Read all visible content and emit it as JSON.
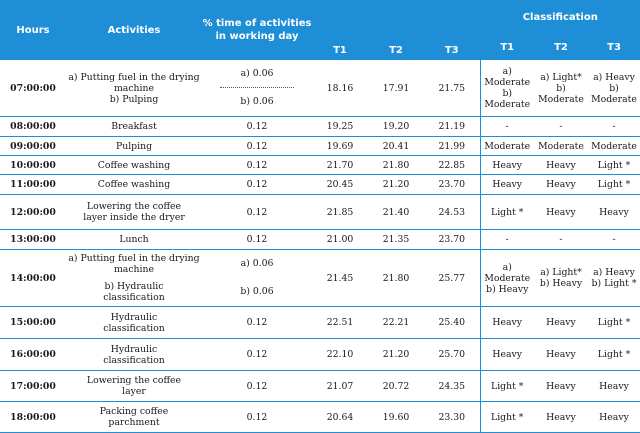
{
  "headers": {
    "hours": "Hours",
    "activities": "Activities",
    "pct": "% time of activities in working day",
    "t1": "T1",
    "t2": "T2",
    "t3": "T3",
    "classification": "Classification",
    "c1": "T1",
    "c2": "T2",
    "c3": "T3"
  },
  "rows": [
    {
      "hour": "07:00:00",
      "act_a": "a) Putting fuel in the drying machine",
      "act_b": "b) Pulping",
      "pct_a": "a) 0.06",
      "pct_b": "b) 0.06",
      "t1": "18.16",
      "t2": "17.91",
      "t3": "21.75",
      "c1_a": "a) Moderate",
      "c1_b": "b) Moderate",
      "c2_a": "a) Light*",
      "c2_b": "b) Moderate",
      "c3_a": "a) Heavy",
      "c3_b": "b) Moderate"
    },
    {
      "hour": "08:00:00",
      "act": "Breakfast",
      "pct": "0.12",
      "t1": "19.25",
      "t2": "19.20",
      "t3": "21.19",
      "c1": "-",
      "c2": "-",
      "c3": "-"
    },
    {
      "hour": "09:00:00",
      "act": "Pulping",
      "pct": "0.12",
      "t1": "19.69",
      "t2": "20.41",
      "t3": "21.99",
      "c1": "Moderate",
      "c2": "Moderate",
      "c3": "Moderate"
    },
    {
      "hour": "10:00:00",
      "act": "Coffee washing",
      "pct": "0.12",
      "t1": "21.70",
      "t2": "21.80",
      "t3": "22.85",
      "c1": "Heavy",
      "c2": "Heavy",
      "c3": "Light *"
    },
    {
      "hour": "11:00:00",
      "act": "Coffee washing",
      "pct": "0.12",
      "t1": "20.45",
      "t2": "21.20",
      "t3": "23.70",
      "c1": "Heavy",
      "c2": "Heavy",
      "c3": "Light *"
    },
    {
      "hour": "12:00:00",
      "act": "Lowering the coffee layer inside the dryer",
      "pct": "0.12",
      "t1": "21.85",
      "t2": "21.40",
      "t3": "24.53",
      "c1": "Light *",
      "c2": "Heavy",
      "c3": "Heavy"
    },
    {
      "hour": "13:00:00",
      "act": "Lunch",
      "pct": "0.12",
      "t1": "21.00",
      "t2": "21.35",
      "t3": "23.70",
      "c1": "-",
      "c2": "-",
      "c3": "-"
    },
    {
      "hour": "14:00:00",
      "act_a": "a) Putting fuel in the drying machine",
      "act_b": "b) Hydraulic classification",
      "pct_a": "a) 0.06",
      "pct_b": "b) 0.06",
      "t1": "21.45",
      "t2": "21.80",
      "t3": "25.77",
      "c1_a": "a) Moderate",
      "c1_b": "b) Heavy",
      "c2_a": "a) Light*",
      "c2_b": "b) Heavy",
      "c3_a": "a) Heavy",
      "c3_b": "b) Light *"
    },
    {
      "hour": "15:00:00",
      "act": "Hydraulic classification",
      "pct": "0.12",
      "t1": "22.51",
      "t2": "22.21",
      "t3": "25.40",
      "c1": "Heavy",
      "c2": "Heavy",
      "c3": "Light *"
    },
    {
      "hour": "16:00:00",
      "act": "Hydraulic classification",
      "pct": "0.12",
      "t1": "22.10",
      "t2": "21.20",
      "t3": "25.70",
      "c1": "Heavy",
      "c2": "Heavy",
      "c3": "Light *"
    },
    {
      "hour": "17:00:00",
      "act": "Lowering the coffee layer",
      "pct": "0.12",
      "t1": "21.07",
      "t2": "20.72",
      "t3": "24.35",
      "c1": "Light *",
      "c2": "Heavy",
      "c3": "Heavy"
    },
    {
      "hour": "18:00:00",
      "act": "Packing coffee parchment",
      "pct": "0.12",
      "t1": "20.64",
      "t2": "19.60",
      "t3": "23.30",
      "c1": "Light *",
      "c2": "Heavy",
      "c3": "Heavy"
    }
  ]
}
